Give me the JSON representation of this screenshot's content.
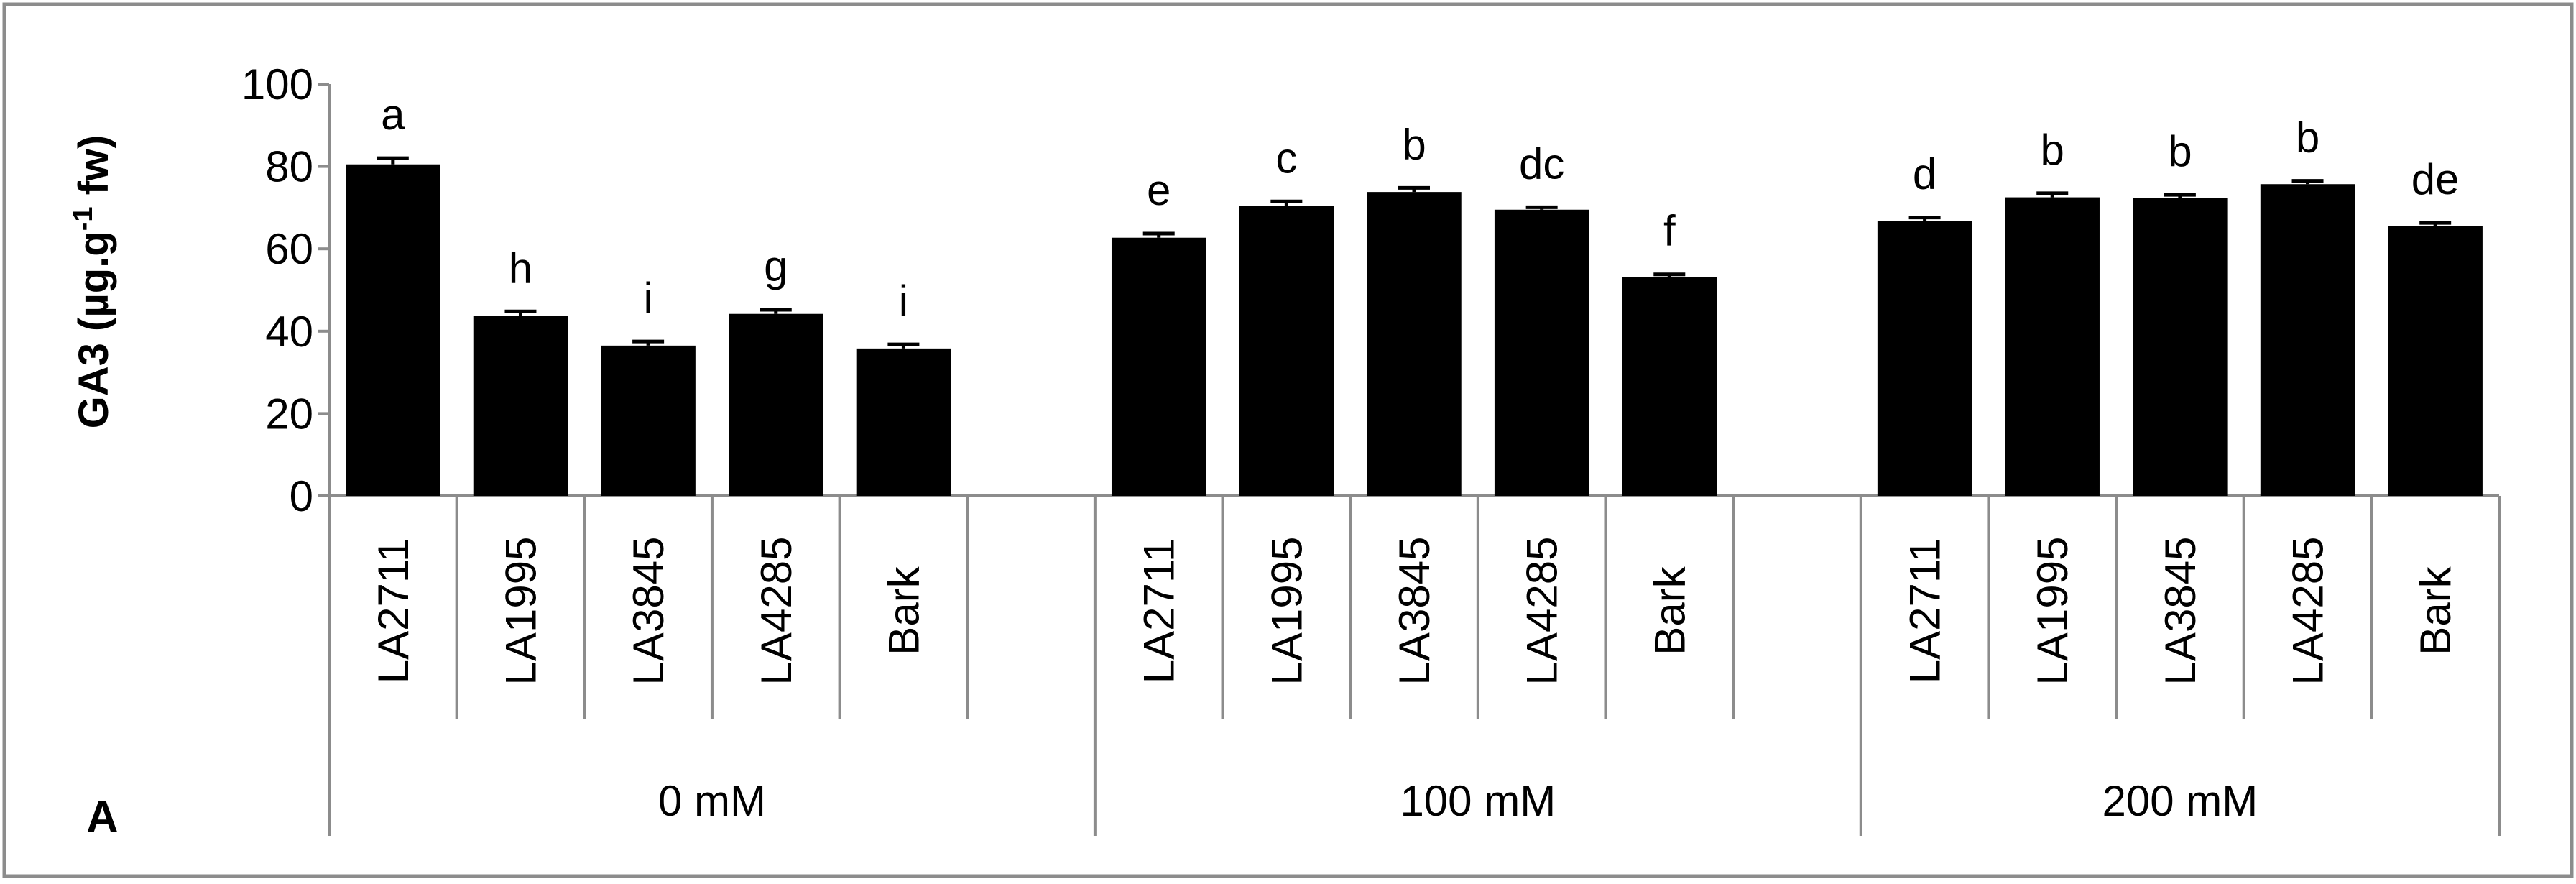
{
  "chart_data": {
    "type": "bar",
    "panel_label": "A",
    "ylabel": "GA3 (µg.g-1 fw)",
    "ylabel_parts": {
      "base": "GA3 (µg.g",
      "sup": "-1",
      "tail": " fw)"
    },
    "ylim": [
      0,
      100
    ],
    "yticks": [
      0,
      20,
      40,
      60,
      80,
      100
    ],
    "grid": false,
    "legend": "none",
    "groups": [
      {
        "label": "0 mM",
        "categories": [
          "LA2711",
          "LA1995",
          "LA3845",
          "LA4285",
          "Bark"
        ],
        "values": [
          80.5,
          43.8,
          36.5,
          44.2,
          35.8
        ],
        "errors": [
          1.5,
          1.0,
          1.0,
          1.0,
          1.0
        ],
        "letters": [
          "a",
          "h",
          "i",
          "g",
          "i"
        ]
      },
      {
        "label": "100 mM",
        "categories": [
          "LA2711",
          "LA1995",
          "LA3845",
          "LA4285",
          "Bark"
        ],
        "values": [
          62.7,
          70.5,
          73.8,
          69.5,
          53.2
        ],
        "errors": [
          1.0,
          1.0,
          1.0,
          0.6,
          0.6
        ],
        "letters": [
          "e",
          "c",
          "b",
          "dc",
          "f"
        ]
      },
      {
        "label": "200 mM",
        "categories": [
          "LA2711",
          "LA1995",
          "LA3845",
          "LA4285",
          "Bark"
        ],
        "values": [
          66.8,
          72.5,
          72.3,
          75.7,
          65.5
        ],
        "errors": [
          0.8,
          1.0,
          0.8,
          0.8,
          0.8
        ],
        "letters": [
          "d",
          "b",
          "b",
          "b",
          "de"
        ]
      }
    ],
    "colors": {
      "bar": "#000000",
      "axis": "#8c8c8c",
      "frame": "#8c8c8c"
    }
  }
}
